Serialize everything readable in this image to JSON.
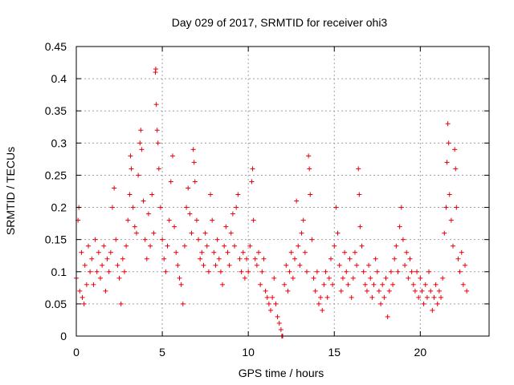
{
  "chart_data": {
    "type": "scatter",
    "title": "Day 029 of 2017, SRMTID for receiver ohi3",
    "xlabel": "GPS time / hours",
    "ylabel": "SRMTID / TECUs",
    "xlim": [
      0,
      24
    ],
    "ylim": [
      0,
      0.45
    ],
    "xticks": [
      0,
      5,
      10,
      15,
      20
    ],
    "xtick_labels": [
      "0",
      "5",
      "10",
      "15",
      "20"
    ],
    "yticks": [
      0,
      0.05,
      0.1,
      0.15,
      0.2,
      0.25,
      0.3,
      0.35,
      0.4,
      0.45
    ],
    "ytick_labels": [
      "0",
      "0.05",
      "0.1",
      "0.15",
      "0.2",
      "0.25",
      "0.3",
      "0.35",
      "0.4",
      "0.45"
    ],
    "grid": true,
    "marker": "+",
    "color": "#e8000b",
    "series": [
      {
        "name": "SRMTID",
        "points": [
          [
            0.0,
            0.09
          ],
          [
            0.1,
            0.18
          ],
          [
            0.15,
            0.2
          ],
          [
            0.2,
            0.07
          ],
          [
            0.3,
            0.13
          ],
          [
            0.35,
            0.06
          ],
          [
            0.45,
            0.05
          ],
          [
            0.5,
            0.11
          ],
          [
            0.6,
            0.08
          ],
          [
            0.7,
            0.14
          ],
          [
            0.8,
            0.1
          ],
          [
            0.9,
            0.12
          ],
          [
            1.0,
            0.08
          ],
          [
            1.1,
            0.15
          ],
          [
            1.2,
            0.1
          ],
          [
            1.3,
            0.13
          ],
          [
            1.4,
            0.09
          ],
          [
            1.5,
            0.11
          ],
          [
            1.6,
            0.14
          ],
          [
            1.7,
            0.07
          ],
          [
            1.8,
            0.12
          ],
          [
            1.9,
            0.1
          ],
          [
            2.0,
            0.13
          ],
          [
            2.1,
            0.2
          ],
          [
            2.2,
            0.23
          ],
          [
            2.3,
            0.15
          ],
          [
            2.4,
            0.11
          ],
          [
            2.5,
            0.09
          ],
          [
            2.6,
            0.05
          ],
          [
            2.7,
            0.12
          ],
          [
            2.8,
            0.1
          ],
          [
            2.9,
            0.14
          ],
          [
            3.0,
            0.18
          ],
          [
            3.1,
            0.22
          ],
          [
            3.15,
            0.28
          ],
          [
            3.2,
            0.26
          ],
          [
            3.3,
            0.2
          ],
          [
            3.4,
            0.17
          ],
          [
            3.5,
            0.16
          ],
          [
            3.6,
            0.25
          ],
          [
            3.7,
            0.3
          ],
          [
            3.75,
            0.32
          ],
          [
            3.8,
            0.29
          ],
          [
            3.9,
            0.21
          ],
          [
            4.0,
            0.15
          ],
          [
            4.1,
            0.12
          ],
          [
            4.2,
            0.19
          ],
          [
            4.3,
            0.14
          ],
          [
            4.4,
            0.22
          ],
          [
            4.5,
            0.16
          ],
          [
            4.6,
            0.41
          ],
          [
            4.62,
            0.415
          ],
          [
            4.65,
            0.36
          ],
          [
            4.7,
            0.32
          ],
          [
            4.75,
            0.3
          ],
          [
            4.8,
            0.26
          ],
          [
            4.9,
            0.2
          ],
          [
            5.0,
            0.15
          ],
          [
            5.1,
            0.12
          ],
          [
            5.2,
            0.1
          ],
          [
            5.3,
            0.14
          ],
          [
            5.4,
            0.18
          ],
          [
            5.5,
            0.24
          ],
          [
            5.6,
            0.28
          ],
          [
            5.7,
            0.17
          ],
          [
            5.8,
            0.13
          ],
          [
            5.9,
            0.11
          ],
          [
            6.0,
            0.09
          ],
          [
            6.1,
            0.08
          ],
          [
            6.2,
            0.05
          ],
          [
            6.3,
            0.14
          ],
          [
            6.4,
            0.2
          ],
          [
            6.5,
            0.23
          ],
          [
            6.6,
            0.19
          ],
          [
            6.7,
            0.16
          ],
          [
            6.8,
            0.29
          ],
          [
            6.85,
            0.27
          ],
          [
            6.9,
            0.24
          ],
          [
            7.0,
            0.18
          ],
          [
            7.1,
            0.15
          ],
          [
            7.2,
            0.12
          ],
          [
            7.3,
            0.13
          ],
          [
            7.4,
            0.11
          ],
          [
            7.5,
            0.16
          ],
          [
            7.6,
            0.14
          ],
          [
            7.7,
            0.1
          ],
          [
            7.8,
            0.22
          ],
          [
            7.9,
            0.18
          ],
          [
            8.0,
            0.13
          ],
          [
            8.1,
            0.11
          ],
          [
            8.2,
            0.15
          ],
          [
            8.3,
            0.12
          ],
          [
            8.4,
            0.1
          ],
          [
            8.5,
            0.08
          ],
          [
            8.6,
            0.14
          ],
          [
            8.7,
            0.17
          ],
          [
            8.8,
            0.13
          ],
          [
            8.9,
            0.11
          ],
          [
            9.0,
            0.16
          ],
          [
            9.1,
            0.19
          ],
          [
            9.2,
            0.14
          ],
          [
            9.3,
            0.2
          ],
          [
            9.4,
            0.22
          ],
          [
            9.5,
            0.12
          ],
          [
            9.6,
            0.1
          ],
          [
            9.7,
            0.13
          ],
          [
            9.8,
            0.09
          ],
          [
            9.9,
            0.12
          ],
          [
            10.0,
            0.1
          ],
          [
            10.1,
            0.14
          ],
          [
            10.2,
            0.24
          ],
          [
            10.25,
            0.26
          ],
          [
            10.3,
            0.18
          ],
          [
            10.4,
            0.12
          ],
          [
            10.5,
            0.11
          ],
          [
            10.6,
            0.13
          ],
          [
            10.7,
            0.08
          ],
          [
            10.8,
            0.1
          ],
          [
            10.9,
            0.12
          ],
          [
            11.0,
            0.07
          ],
          [
            11.1,
            0.06
          ],
          [
            11.2,
            0.05
          ],
          [
            11.3,
            0.04
          ],
          [
            11.4,
            0.06
          ],
          [
            11.5,
            0.09
          ],
          [
            11.6,
            0.05
          ],
          [
            11.7,
            0.03
          ],
          [
            11.8,
            0.02
          ],
          [
            11.9,
            0.01
          ],
          [
            11.95,
            0.0
          ],
          [
            12.0,
            0.0
          ],
          [
            12.1,
            0.08
          ],
          [
            12.2,
            0.11
          ],
          [
            12.3,
            0.07
          ],
          [
            12.4,
            0.1
          ],
          [
            12.5,
            0.13
          ],
          [
            12.6,
            0.09
          ],
          [
            12.7,
            0.12
          ],
          [
            12.8,
            0.21
          ],
          [
            12.9,
            0.14
          ],
          [
            13.0,
            0.11
          ],
          [
            13.1,
            0.16
          ],
          [
            13.2,
            0.18
          ],
          [
            13.3,
            0.13
          ],
          [
            13.4,
            0.1
          ],
          [
            13.5,
            0.28
          ],
          [
            13.55,
            0.26
          ],
          [
            13.6,
            0.22
          ],
          [
            13.7,
            0.15
          ],
          [
            13.8,
            0.09
          ],
          [
            13.9,
            0.07
          ],
          [
            14.0,
            0.1
          ],
          [
            14.1,
            0.05
          ],
          [
            14.2,
            0.06
          ],
          [
            14.3,
            0.04
          ],
          [
            14.4,
            0.08
          ],
          [
            14.5,
            0.1
          ],
          [
            14.6,
            0.06
          ],
          [
            14.7,
            0.09
          ],
          [
            14.8,
            0.12
          ],
          [
            14.9,
            0.08
          ],
          [
            15.0,
            0.14
          ],
          [
            15.1,
            0.2
          ],
          [
            15.2,
            0.16
          ],
          [
            15.3,
            0.11
          ],
          [
            15.4,
            0.07
          ],
          [
            15.5,
            0.09
          ],
          [
            15.6,
            0.13
          ],
          [
            15.7,
            0.1
          ],
          [
            15.8,
            0.08
          ],
          [
            15.9,
            0.12
          ],
          [
            16.0,
            0.06
          ],
          [
            16.1,
            0.09
          ],
          [
            16.2,
            0.13
          ],
          [
            16.3,
            0.11
          ],
          [
            16.4,
            0.26
          ],
          [
            16.45,
            0.22
          ],
          [
            16.5,
            0.17
          ],
          [
            16.6,
            0.14
          ],
          [
            16.7,
            0.1
          ],
          [
            16.8,
            0.08
          ],
          [
            16.9,
            0.07
          ],
          [
            17.0,
            0.11
          ],
          [
            17.1,
            0.09
          ],
          [
            17.2,
            0.06
          ],
          [
            17.3,
            0.08
          ],
          [
            17.4,
            0.12
          ],
          [
            17.5,
            0.1
          ],
          [
            17.6,
            0.07
          ],
          [
            17.7,
            0.05
          ],
          [
            17.8,
            0.08
          ],
          [
            17.9,
            0.06
          ],
          [
            18.0,
            0.09
          ],
          [
            18.1,
            0.03
          ],
          [
            18.2,
            0.07
          ],
          [
            18.3,
            0.1
          ],
          [
            18.4,
            0.08
          ],
          [
            18.5,
            0.12
          ],
          [
            18.6,
            0.14
          ],
          [
            18.7,
            0.1
          ],
          [
            18.8,
            0.17
          ],
          [
            18.9,
            0.2
          ],
          [
            19.0,
            0.15
          ],
          [
            19.1,
            0.11
          ],
          [
            19.2,
            0.13
          ],
          [
            19.3,
            0.09
          ],
          [
            19.4,
            0.12
          ],
          [
            19.5,
            0.1
          ],
          [
            19.6,
            0.08
          ],
          [
            19.7,
            0.07
          ],
          [
            19.8,
            0.1
          ],
          [
            19.9,
            0.06
          ],
          [
            20.0,
            0.09
          ],
          [
            20.1,
            0.07
          ],
          [
            20.2,
            0.05
          ],
          [
            20.3,
            0.08
          ],
          [
            20.4,
            0.06
          ],
          [
            20.5,
            0.1
          ],
          [
            20.6,
            0.07
          ],
          [
            20.7,
            0.04
          ],
          [
            20.8,
            0.06
          ],
          [
            20.9,
            0.08
          ],
          [
            21.0,
            0.05
          ],
          [
            21.1,
            0.07
          ],
          [
            21.2,
            0.06
          ],
          [
            21.3,
            0.09
          ],
          [
            21.4,
            0.16
          ],
          [
            21.5,
            0.2
          ],
          [
            21.55,
            0.27
          ],
          [
            21.6,
            0.33
          ],
          [
            21.65,
            0.3
          ],
          [
            21.7,
            0.22
          ],
          [
            21.8,
            0.18
          ],
          [
            21.9,
            0.14
          ],
          [
            22.0,
            0.29
          ],
          [
            22.05,
            0.26
          ],
          [
            22.1,
            0.2
          ],
          [
            22.2,
            0.12
          ],
          [
            22.3,
            0.1
          ],
          [
            22.4,
            0.13
          ],
          [
            22.5,
            0.08
          ],
          [
            22.6,
            0.11
          ],
          [
            22.7,
            0.07
          ]
        ]
      }
    ]
  }
}
